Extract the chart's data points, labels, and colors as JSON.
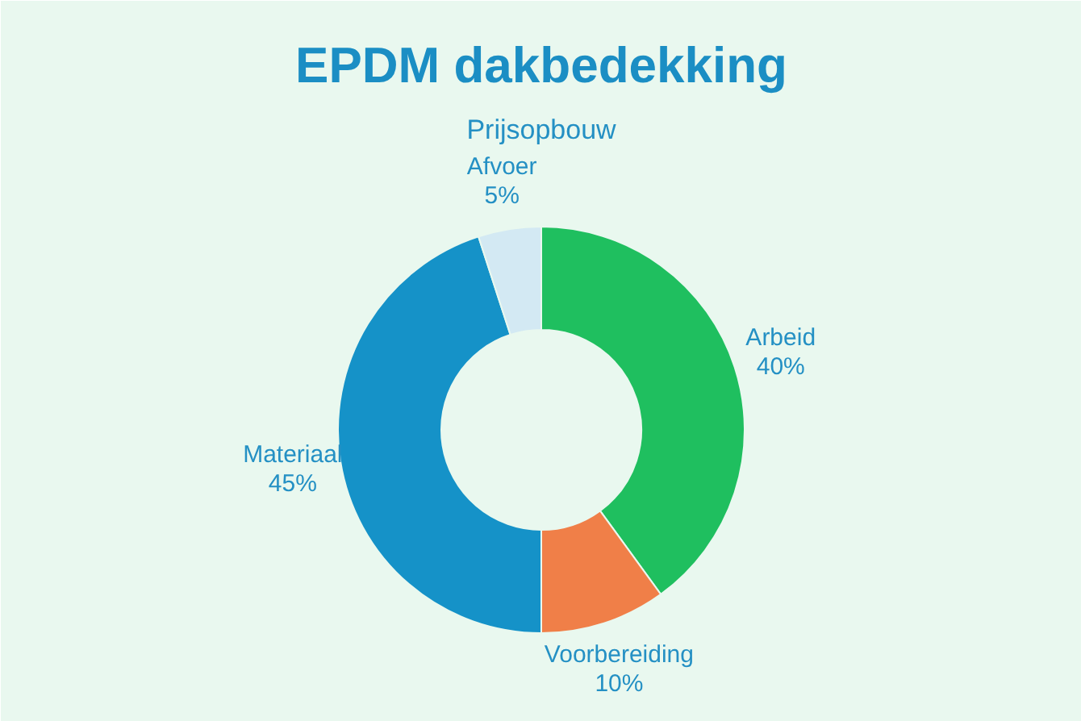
{
  "chart_data": {
    "type": "donut",
    "title": "EPDM dakbedekking",
    "subtitle": "Prijsopbouw",
    "categories": [
      "Arbeid",
      "Voorbereiding",
      "Materiaal",
      "Afvoer"
    ],
    "values": [
      40,
      10,
      45,
      5
    ],
    "colors": [
      "#1fbf5f",
      "#f07f48",
      "#1592c8",
      "#d3e9f3"
    ],
    "value_labels": [
      "40%",
      "10%",
      "45%",
      "5%"
    ]
  }
}
